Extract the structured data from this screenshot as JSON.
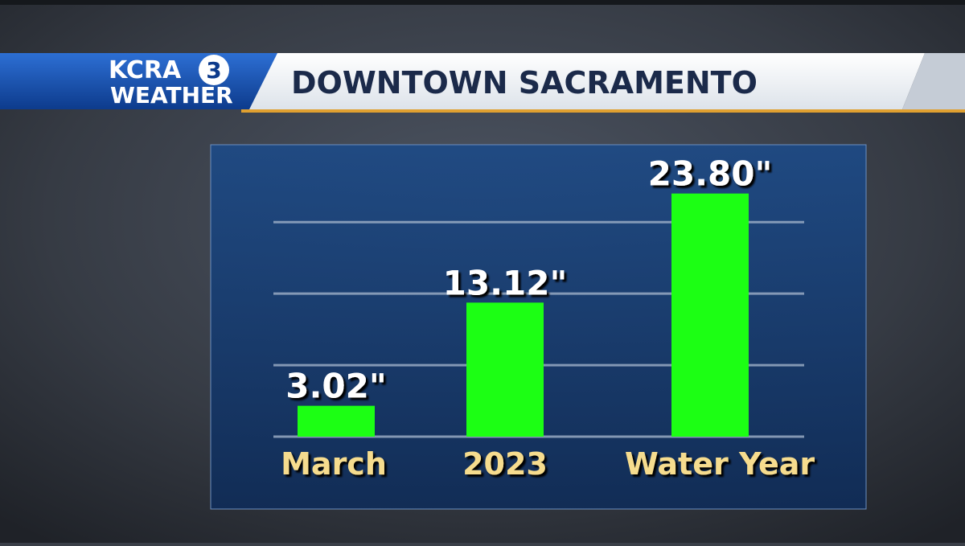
{
  "header": {
    "brand": "KCRA",
    "number": "3",
    "label": "WEATHER"
  },
  "chart_data": {
    "type": "bar",
    "title": "DOWNTOWN SACRAMENTO",
    "categories": [
      "March",
      "2023",
      "Water Year"
    ],
    "values": [
      3.02,
      13.12,
      23.8
    ],
    "value_labels": [
      "3.02\"",
      "13.12\"",
      "23.80\""
    ],
    "color": "#1cff14",
    "ylim": [
      0,
      27
    ],
    "yticks": [
      0,
      7,
      14,
      21
    ],
    "grid": true
  }
}
